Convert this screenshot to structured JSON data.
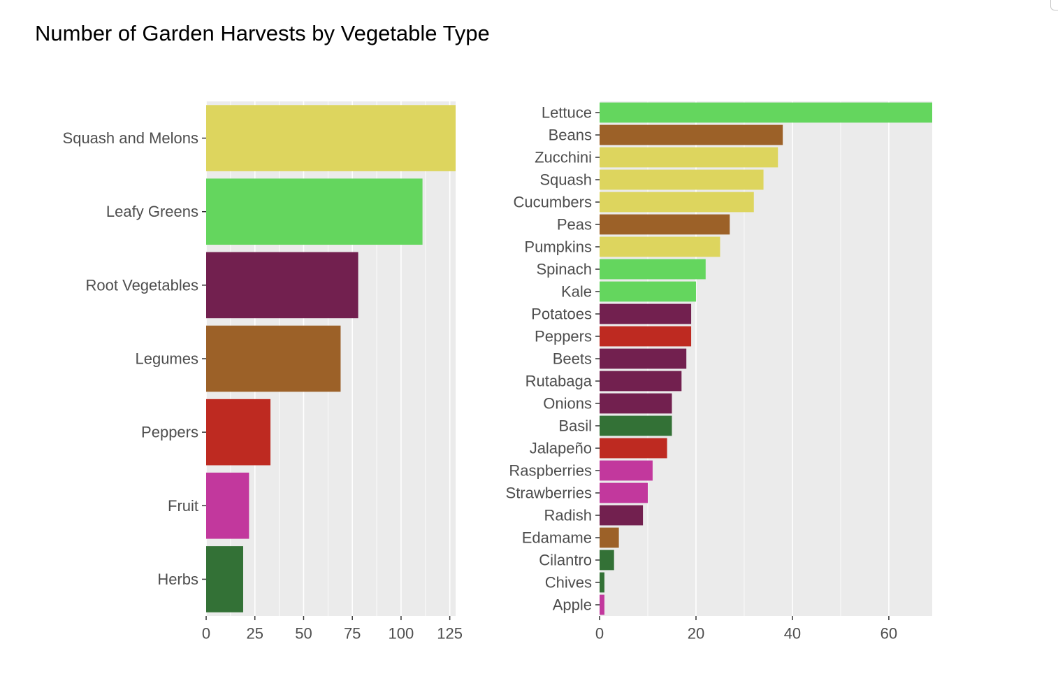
{
  "title": "Number of Garden Harvests by Vegetable Type",
  "colors": {
    "panel_bg": "#ebebeb",
    "grid": "#ffffff",
    "tick_text": "#4d4d4d",
    "tick_mark": "#333333",
    "Squash and Melons": "#ddd55e",
    "Leafy Greens": "#64d65e",
    "Root Vegetables": "#72204f",
    "Legumes": "#9c6128",
    "Peppers": "#be2a21",
    "Fruit": "#c2389d",
    "Herbs": "#337136"
  },
  "chart_data": [
    {
      "type": "bar",
      "orientation": "horizontal",
      "categories": [
        "Squash and Melons",
        "Leafy Greens",
        "Root Vegetables",
        "Legumes",
        "Peppers",
        "Fruit",
        "Herbs"
      ],
      "values": [
        128,
        111,
        78,
        69,
        33,
        22,
        19
      ],
      "xlim": [
        0,
        128
      ],
      "xticks": [
        0,
        25,
        50,
        75,
        100,
        125
      ],
      "xlabel": "",
      "ylabel": "",
      "grid": true,
      "legend": "none"
    },
    {
      "type": "bar",
      "orientation": "horizontal",
      "categories": [
        "Lettuce",
        "Beans",
        "Zucchini",
        "Squash",
        "Cucumbers",
        "Peas",
        "Pumpkins",
        "Spinach",
        "Kale",
        "Potatoes",
        "Peppers",
        "Beets",
        "Rutabaga",
        "Onions",
        "Basil",
        "Jalapeño",
        "Raspberries",
        "Strawberries",
        "Radish",
        "Edamame",
        "Cilantro",
        "Chives",
        "Apple"
      ],
      "values": [
        69,
        38,
        37,
        34,
        32,
        27,
        25,
        22,
        20,
        19,
        19,
        18,
        17,
        15,
        15,
        14,
        11,
        10,
        9,
        4,
        3,
        1,
        1
      ],
      "groups": [
        "Leafy Greens",
        "Legumes",
        "Squash and Melons",
        "Squash and Melons",
        "Squash and Melons",
        "Legumes",
        "Squash and Melons",
        "Leafy Greens",
        "Leafy Greens",
        "Root Vegetables",
        "Peppers",
        "Root Vegetables",
        "Root Vegetables",
        "Root Vegetables",
        "Herbs",
        "Peppers",
        "Fruit",
        "Fruit",
        "Root Vegetables",
        "Legumes",
        "Herbs",
        "Herbs",
        "Fruit"
      ],
      "xlim": [
        0,
        69
      ],
      "xticks": [
        0,
        20,
        40,
        60
      ],
      "xlabel": "",
      "ylabel": "",
      "grid": true,
      "legend": "none"
    }
  ]
}
